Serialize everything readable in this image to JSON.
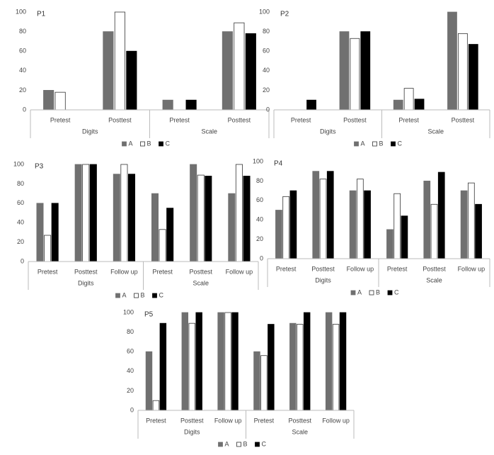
{
  "chart_data": [
    {
      "type": "bar",
      "title": "P1",
      "groups": [
        "Digits",
        "Scale"
      ],
      "categories": [
        "Pretest",
        "Posttest",
        "Pretest",
        "Posttest"
      ],
      "series": [
        {
          "name": "A",
          "color": "#707070",
          "values": [
            20,
            80,
            10,
            80
          ]
        },
        {
          "name": "B",
          "color": "#ffffff",
          "values": [
            18,
            100,
            0,
            89
          ]
        },
        {
          "name": "C",
          "color": "#000000",
          "values": [
            0,
            60,
            10,
            78
          ]
        }
      ],
      "ylim": [
        0,
        100
      ],
      "yticks": [
        0,
        20,
        40,
        60,
        80,
        100
      ]
    },
    {
      "type": "bar",
      "title": "P2",
      "groups": [
        "Digits",
        "Scale"
      ],
      "categories": [
        "Pretest",
        "Posttest",
        "Pretest",
        "Posttest"
      ],
      "series": [
        {
          "name": "A",
          "color": "#707070",
          "values": [
            0,
            80,
            10,
            100
          ]
        },
        {
          "name": "B",
          "color": "#ffffff",
          "values": [
            0,
            73,
            22,
            78
          ]
        },
        {
          "name": "C",
          "color": "#000000",
          "values": [
            10,
            80,
            11,
            67
          ]
        }
      ],
      "ylim": [
        0,
        100
      ],
      "yticks": [
        0,
        20,
        40,
        60,
        80,
        100
      ]
    },
    {
      "type": "bar",
      "title": "P3",
      "groups": [
        "Digits",
        "Scale"
      ],
      "categories": [
        "Pretest",
        "Posttest",
        "Follow up",
        "Pretest",
        "Posttest",
        "Follow up"
      ],
      "series": [
        {
          "name": "A",
          "color": "#707070",
          "values": [
            60,
            100,
            90,
            70,
            100,
            70
          ]
        },
        {
          "name": "B",
          "color": "#ffffff",
          "values": [
            27,
            100,
            100,
            33,
            89,
            100
          ]
        },
        {
          "name": "C",
          "color": "#000000",
          "values": [
            60,
            100,
            90,
            55,
            88,
            88
          ]
        }
      ],
      "ylim": [
        0,
        100
      ],
      "yticks": [
        0,
        20,
        40,
        60,
        80,
        100
      ]
    },
    {
      "type": "bar",
      "title": "P4",
      "groups": [
        "Digits",
        "Scale"
      ],
      "categories": [
        "Pretest",
        "Posttest",
        "Follow up",
        "Pretest",
        "Posttest",
        "Follow up"
      ],
      "series": [
        {
          "name": "A",
          "color": "#707070",
          "values": [
            50,
            90,
            70,
            30,
            80,
            70
          ]
        },
        {
          "name": "B",
          "color": "#ffffff",
          "values": [
            64,
            82,
            82,
            67,
            56,
            78
          ]
        },
        {
          "name": "C",
          "color": "#000000",
          "values": [
            70,
            90,
            70,
            44,
            89,
            56
          ]
        }
      ],
      "ylim": [
        0,
        100
      ],
      "yticks": [
        0,
        20,
        40,
        60,
        80,
        100
      ]
    },
    {
      "type": "bar",
      "title": "P5",
      "groups": [
        "Digits",
        "Scale"
      ],
      "categories": [
        "Pretest",
        "Posttest",
        "Follow up",
        "Pretest",
        "Posttest",
        "Follow up"
      ],
      "series": [
        {
          "name": "A",
          "color": "#707070",
          "values": [
            60,
            100,
            100,
            60,
            89,
            100
          ]
        },
        {
          "name": "B",
          "color": "#ffffff",
          "values": [
            10,
            89,
            100,
            56,
            88,
            88
          ]
        },
        {
          "name": "C",
          "color": "#000000",
          "values": [
            89,
            100,
            100,
            88,
            100,
            100
          ]
        }
      ],
      "ylim": [
        0,
        100
      ],
      "yticks": [
        0,
        20,
        40,
        60,
        80,
        100
      ]
    }
  ]
}
